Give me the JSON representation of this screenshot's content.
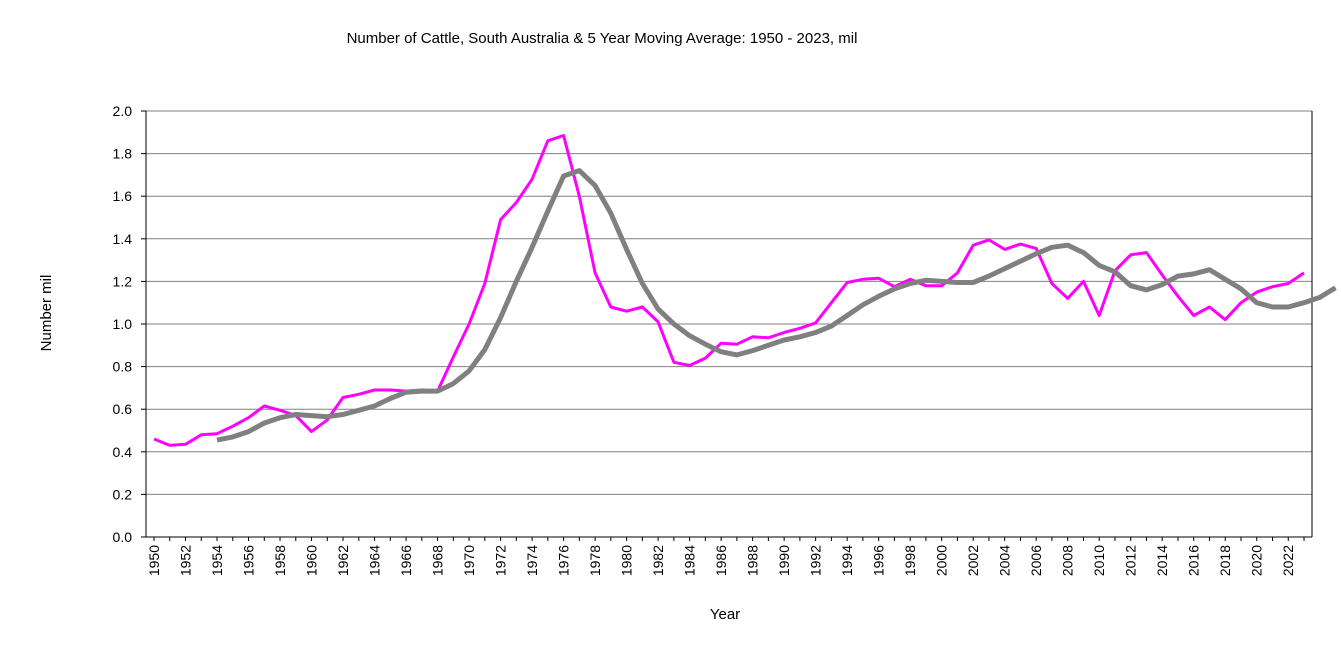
{
  "chart_data": {
    "type": "line",
    "title": "Number of  Cattle, South Australia & 5 Year Moving Average: 1950 - 2023, mil",
    "xlabel": "Year",
    "ylabel": "Number mil",
    "ylim": [
      0,
      2.0
    ],
    "yticks": [
      "0.0",
      "0.2",
      "0.4",
      "0.6",
      "0.8",
      "1.0",
      "1.2",
      "1.4",
      "1.6",
      "1.8",
      "2.0"
    ],
    "xrange": [
      1950,
      2023
    ],
    "xticks": [
      1950,
      1952,
      1954,
      1956,
      1958,
      1960,
      1962,
      1964,
      1966,
      1968,
      1970,
      1972,
      1974,
      1976,
      1978,
      1980,
      1982,
      1984,
      1986,
      1988,
      1990,
      1992,
      1994,
      1996,
      1998,
      2000,
      2002,
      2004,
      2006,
      2008,
      2010,
      2012,
      2014,
      2016,
      2018,
      2020,
      2022
    ],
    "grid": true,
    "series": [
      {
        "name": "Number of Cattle",
        "color": "#ff00ff",
        "start_year": 1950,
        "values": [
          0.46,
          0.43,
          0.435,
          0.48,
          0.485,
          0.52,
          0.56,
          0.615,
          0.595,
          0.57,
          0.495,
          0.55,
          0.655,
          0.67,
          0.69,
          0.69,
          0.685,
          0.69,
          0.685,
          0.845,
          1.0,
          1.19,
          1.49,
          1.57,
          1.68,
          1.86,
          1.885,
          1.6,
          1.24,
          1.08,
          1.06,
          1.08,
          1.01,
          0.82,
          0.805,
          0.84,
          0.91,
          0.905,
          0.94,
          0.935,
          0.96,
          0.98,
          1.005,
          1.1,
          1.195,
          1.21,
          1.215,
          1.175,
          1.21,
          1.18,
          1.18,
          1.24,
          1.37,
          1.395,
          1.35,
          1.375,
          1.355,
          1.19,
          1.12,
          1.2,
          1.04,
          1.25,
          1.325,
          1.335,
          1.23,
          1.13,
          1.04,
          1.08,
          1.02,
          1.1,
          1.15,
          1.175,
          1.19,
          1.24
        ]
      },
      {
        "name": "5 Year Moving Average",
        "color": "#808080",
        "start_year": 1954,
        "values": [
          0.455,
          0.47,
          0.495,
          0.535,
          0.56,
          0.575,
          0.57,
          0.565,
          0.575,
          0.595,
          0.615,
          0.65,
          0.68,
          0.685,
          0.685,
          0.72,
          0.78,
          0.88,
          1.03,
          1.2,
          1.36,
          1.53,
          1.695,
          1.72,
          1.65,
          1.52,
          1.35,
          1.19,
          1.07,
          1.0,
          0.945,
          0.905,
          0.87,
          0.855,
          0.875,
          0.9,
          0.925,
          0.94,
          0.96,
          0.99,
          1.04,
          1.09,
          1.13,
          1.165,
          1.19,
          1.205,
          1.2,
          1.195,
          1.195,
          1.225,
          1.26,
          1.295,
          1.33,
          1.36,
          1.37,
          1.335,
          1.275,
          1.245,
          1.18,
          1.16,
          1.185,
          1.225,
          1.235,
          1.255,
          1.21,
          1.165,
          1.1,
          1.08,
          1.08,
          1.1,
          1.125,
          1.17
        ]
      }
    ]
  }
}
